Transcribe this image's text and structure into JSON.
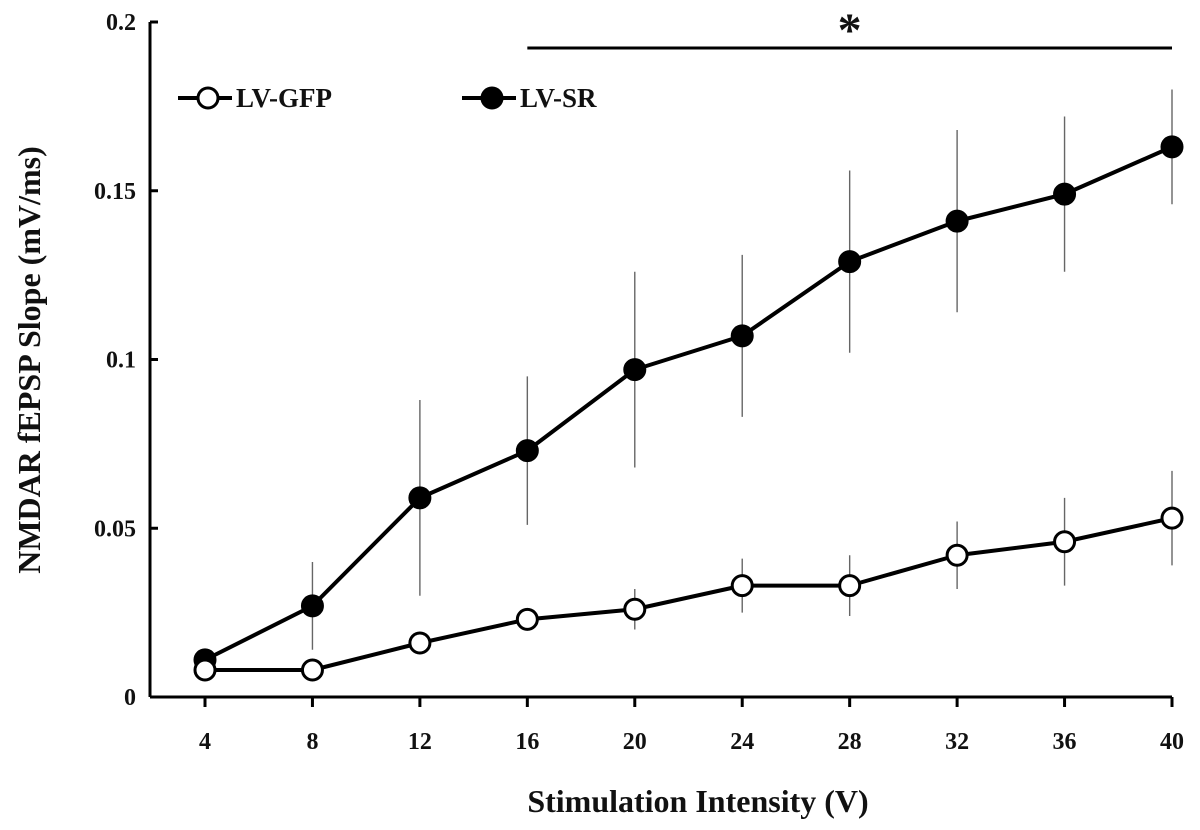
{
  "chart_data": {
    "type": "line",
    "title": "",
    "xlabel": "Stimulation Intensity (V)",
    "ylabel": "NMDAR fEPSP Slope (mV/ms)",
    "x": [
      4,
      8,
      12,
      16,
      20,
      24,
      28,
      32,
      36,
      40
    ],
    "x_tick_labels": [
      "4",
      "8",
      "12",
      "16",
      "20",
      "24",
      "28",
      "32",
      "36",
      "40"
    ],
    "y_tick_labels": [
      "0",
      "0.05",
      "0.1",
      "0.15",
      "0.2"
    ],
    "y_ticks": [
      0,
      0.05,
      0.1,
      0.15,
      0.2
    ],
    "ylim": [
      0,
      0.2
    ],
    "grid": false,
    "legend_placement": "top-left",
    "series": [
      {
        "name": "LV-GFP",
        "marker": "open-circle",
        "color": "#000000",
        "values": [
          0.008,
          0.008,
          0.016,
          0.023,
          0.026,
          0.033,
          0.033,
          0.042,
          0.046,
          0.053
        ],
        "errors": [
          0.001,
          0.001,
          0.002,
          0.003,
          0.006,
          0.008,
          0.009,
          0.01,
          0.013,
          0.014
        ]
      },
      {
        "name": "LV-SR",
        "marker": "filled-circle",
        "color": "#000000",
        "values": [
          0.011,
          0.027,
          0.059,
          0.073,
          0.097,
          0.107,
          0.129,
          0.141,
          0.149,
          0.163
        ],
        "errors": [
          0.001,
          0.013,
          0.029,
          0.022,
          0.029,
          0.024,
          0.027,
          0.027,
          0.023,
          0.017
        ]
      }
    ],
    "annotations": [
      {
        "text": "*",
        "type": "significance-bar",
        "x_start": 16,
        "x_end": 40
      }
    ]
  }
}
